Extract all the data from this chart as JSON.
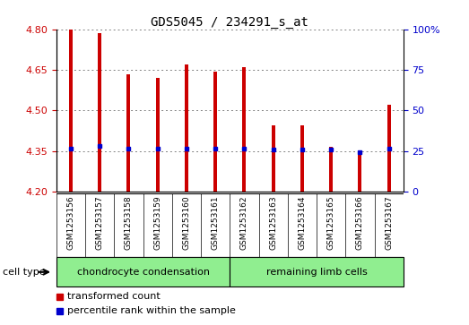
{
  "title": "GDS5045 / 234291_s_at",
  "samples": [
    "GSM1253156",
    "GSM1253157",
    "GSM1253158",
    "GSM1253159",
    "GSM1253160",
    "GSM1253161",
    "GSM1253162",
    "GSM1253163",
    "GSM1253164",
    "GSM1253165",
    "GSM1253166",
    "GSM1253167"
  ],
  "transformed_counts": [
    4.8,
    4.785,
    4.635,
    4.62,
    4.67,
    4.645,
    4.66,
    4.445,
    4.445,
    4.365,
    4.34,
    4.52
  ],
  "percentile_values": [
    4.36,
    4.37,
    4.36,
    4.36,
    4.36,
    4.36,
    4.36,
    4.355,
    4.355,
    4.355,
    4.345,
    4.36
  ],
  "group1_label": "chondrocyte condensation",
  "group2_label": "remaining limb cells",
  "group1_count": 6,
  "group2_count": 6,
  "ylim": [
    4.2,
    4.8
  ],
  "yticks": [
    4.2,
    4.35,
    4.5,
    4.65,
    4.8
  ],
  "right_yticks": [
    0,
    25,
    50,
    75,
    100
  ],
  "bar_color": "#cc0000",
  "dot_color": "#0000cc",
  "bar_width": 0.12,
  "cell_type_label": "cell type",
  "legend_line1": "transformed count",
  "legend_line2": "percentile rank within the sample",
  "group1_bg": "#90ee90",
  "group2_bg": "#90ee90",
  "grid_color": "#808080",
  "tick_label_color_left": "#cc0000",
  "tick_label_color_right": "#0000cc",
  "background_plot": "#ffffff",
  "background_xtick": "#d3d3d3",
  "fig_bg": "#ffffff"
}
